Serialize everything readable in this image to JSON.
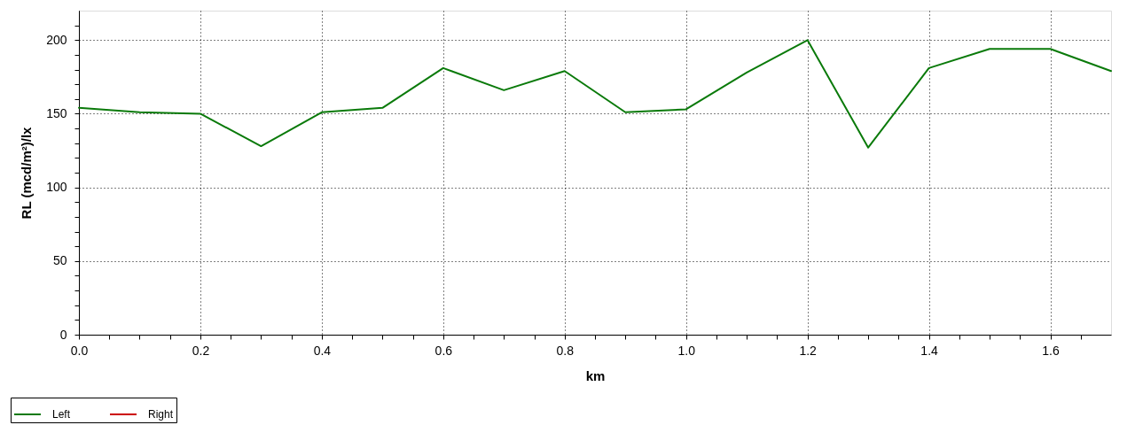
{
  "chart_data": {
    "type": "line",
    "xlabel": "km",
    "ylabel": "RL (mcd/m²)/lx",
    "x": [
      0,
      0.1,
      0.2,
      0.3,
      0.4,
      0.5,
      0.6,
      0.7,
      0.8,
      0.9,
      1,
      1.1,
      1.2,
      1.3,
      1.4,
      1.5,
      1.6,
      1.7
    ],
    "series": [
      {
        "name": "Left",
        "color": "#0a7a0a",
        "values": [
          154,
          151,
          150,
          128,
          151,
          154,
          181,
          166,
          179,
          151,
          153,
          178,
          200,
          127,
          181,
          194,
          194,
          179
        ]
      },
      {
        "name": "Right",
        "color": "#cc0000",
        "values": [
          null,
          null,
          null,
          null,
          null,
          null,
          null,
          null,
          null,
          null,
          null,
          null,
          null,
          null,
          null,
          null,
          null,
          null
        ]
      }
    ],
    "xlim": [
      0,
      1.7
    ],
    "ylim": [
      0,
      220
    ],
    "xticks": [
      {
        "value": 0,
        "label": "0.0"
      },
      {
        "value": 0.05,
        "label": null
      },
      {
        "value": 0.1,
        "label": null
      },
      {
        "value": 0.15,
        "label": null
      },
      0.2,
      {
        "value": 0.25,
        "label": null
      },
      {
        "value": 0.3,
        "label": null
      },
      {
        "value": 0.35,
        "label": null
      },
      0.4,
      {
        "value": 0.45,
        "label": null
      },
      {
        "value": 0.5,
        "label": null
      },
      {
        "value": 0.55,
        "label": null
      },
      0.6,
      {
        "value": 0.65,
        "label": null
      },
      {
        "value": 0.7,
        "label": null
      },
      {
        "value": 0.75,
        "label": null
      },
      0.8,
      {
        "value": 0.85,
        "label": null
      },
      {
        "value": 0.9,
        "label": null
      },
      {
        "value": 0.95,
        "label": null
      },
      {
        "value": 1,
        "label": "1.0"
      },
      {
        "value": 1.05,
        "label": null
      },
      {
        "value": 1.1,
        "label": null
      },
      {
        "value": 1.15,
        "label": null
      },
      1.2,
      {
        "value": 1.25,
        "label": null
      },
      {
        "value": 1.3,
        "label": null
      },
      {
        "value": 1.35,
        "label": null
      },
      1.4,
      {
        "value": 1.45,
        "label": null
      },
      {
        "value": 1.5,
        "label": null
      },
      {
        "value": 1.55,
        "label": null
      },
      1.6,
      {
        "value": 1.65,
        "label": null
      }
    ],
    "yticks": [
      0,
      {
        "value": 10,
        "label": null
      },
      {
        "value": 20,
        "label": null
      },
      {
        "value": 30,
        "label": null
      },
      {
        "value": 40,
        "label": null
      },
      50,
      {
        "value": 60,
        "label": null
      },
      {
        "value": 70,
        "label": null
      },
      {
        "value": 80,
        "label": null
      },
      {
        "value": 90,
        "label": null
      },
      100,
      {
        "value": 110,
        "label": null
      },
      {
        "value": 120,
        "label": null
      },
      {
        "value": 130,
        "label": null
      },
      {
        "value": 140,
        "label": null
      },
      150,
      {
        "value": 160,
        "label": null
      },
      {
        "value": 170,
        "label": null
      },
      {
        "value": 180,
        "label": null
      },
      {
        "value": 190,
        "label": null
      },
      200,
      {
        "value": 210,
        "label": null
      }
    ],
    "grid": true,
    "legend": "bottom left",
    "line_style": "solid"
  }
}
